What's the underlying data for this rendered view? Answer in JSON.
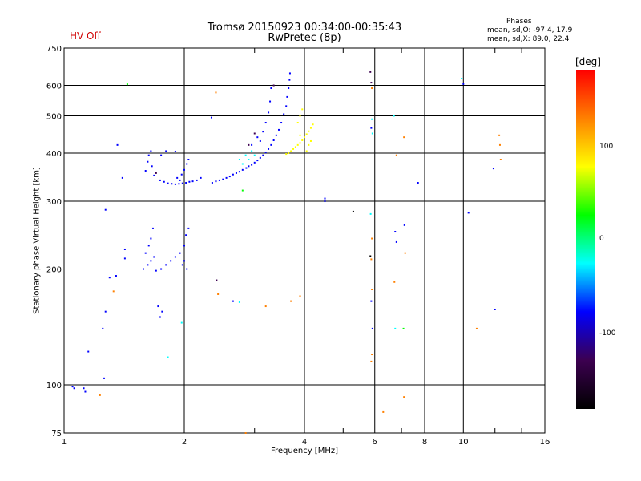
{
  "header": {
    "title_line1": "Tromsø 20150923 00:34:00-00:35:43",
    "title_line2": "RwPretec (8p)",
    "hv_status": "HV Off",
    "phases_label": "Phases",
    "phase_o": "mean, sd,O: -97.4, 17.9",
    "phase_x": "mean, sd,X:  89.0, 22.4"
  },
  "colorbar": {
    "unit": "[deg]",
    "ticks": [
      "100",
      "0",
      "-100"
    ],
    "range": [
      -180,
      180
    ],
    "colors": [
      "#000000",
      "#3c0050",
      "#0000ff",
      "#00ffff",
      "#00ff00",
      "#ffff00",
      "#ff8000",
      "#ff0000"
    ]
  },
  "chart_data": {
    "type": "scatter",
    "title": "Tromsø 20150923 00:34:00-00:35:43",
    "subtitle": "RwPretec (8p)",
    "xlabel": "Frequency [MHz]",
    "ylabel": "Stationary phase Virtual Height [km]",
    "xscale": "log",
    "yscale": "log",
    "xlim": [
      1,
      16
    ],
    "ylim": [
      75,
      750
    ],
    "xticks": [
      1,
      2,
      4,
      6,
      8,
      10,
      16
    ],
    "xtick_labels": [
      "1",
      "2",
      "4",
      "6",
      "8",
      "10",
      "16"
    ],
    "yticks": [
      75,
      100,
      200,
      300,
      400,
      500,
      600,
      750
    ],
    "ytick_labels": [
      "75",
      "100",
      "200",
      "300",
      "400",
      "500",
      "600",
      "750"
    ],
    "grid": true,
    "colorbar_label": "[deg]",
    "points": [
      {
        "x": 1.74,
        "y": 340,
        "c": -100
      },
      {
        "x": 1.78,
        "y": 337,
        "c": -100
      },
      {
        "x": 1.82,
        "y": 334,
        "c": -100
      },
      {
        "x": 1.86,
        "y": 333,
        "c": -100
      },
      {
        "x": 1.9,
        "y": 332,
        "c": -100
      },
      {
        "x": 1.94,
        "y": 333,
        "c": -100
      },
      {
        "x": 1.98,
        "y": 334,
        "c": -100
      },
      {
        "x": 2.02,
        "y": 335,
        "c": -100
      },
      {
        "x": 2.06,
        "y": 337,
        "c": -100
      },
      {
        "x": 2.1,
        "y": 338,
        "c": -100
      },
      {
        "x": 1.92,
        "y": 345,
        "c": -100
      },
      {
        "x": 1.97,
        "y": 352,
        "c": -100
      },
      {
        "x": 2.0,
        "y": 362,
        "c": -100
      },
      {
        "x": 2.03,
        "y": 375,
        "c": -100
      },
      {
        "x": 2.05,
        "y": 385,
        "c": -100
      },
      {
        "x": 1.95,
        "y": 340,
        "c": -100
      },
      {
        "x": 2.15,
        "y": 340,
        "c": -100
      },
      {
        "x": 2.2,
        "y": 345,
        "c": -100
      },
      {
        "x": 2.35,
        "y": 335,
        "c": -100
      },
      {
        "x": 2.4,
        "y": 338,
        "c": -100
      },
      {
        "x": 2.45,
        "y": 340,
        "c": -100
      },
      {
        "x": 2.5,
        "y": 342,
        "c": -100
      },
      {
        "x": 2.55,
        "y": 345,
        "c": -100
      },
      {
        "x": 2.6,
        "y": 348,
        "c": -100
      },
      {
        "x": 2.65,
        "y": 352,
        "c": -100
      },
      {
        "x": 2.7,
        "y": 355,
        "c": -100
      },
      {
        "x": 2.75,
        "y": 358,
        "c": -100
      },
      {
        "x": 2.8,
        "y": 362,
        "c": -100
      },
      {
        "x": 2.86,
        "y": 366,
        "c": -100
      },
      {
        "x": 2.9,
        "y": 370,
        "c": -100
      },
      {
        "x": 2.95,
        "y": 373,
        "c": -100
      },
      {
        "x": 3.0,
        "y": 378,
        "c": -100
      },
      {
        "x": 3.05,
        "y": 383,
        "c": -100
      },
      {
        "x": 3.1,
        "y": 389,
        "c": -100
      },
      {
        "x": 3.15,
        "y": 395,
        "c": -100
      },
      {
        "x": 3.2,
        "y": 402,
        "c": -100
      },
      {
        "x": 3.25,
        "y": 410,
        "c": -100
      },
      {
        "x": 3.3,
        "y": 420,
        "c": -100
      },
      {
        "x": 3.35,
        "y": 432,
        "c": -100
      },
      {
        "x": 3.4,
        "y": 445,
        "c": -100
      },
      {
        "x": 3.45,
        "y": 460,
        "c": -100
      },
      {
        "x": 3.5,
        "y": 480,
        "c": -100
      },
      {
        "x": 3.55,
        "y": 505,
        "c": -100
      },
      {
        "x": 3.6,
        "y": 530,
        "c": -100
      },
      {
        "x": 3.62,
        "y": 560,
        "c": -100
      },
      {
        "x": 3.65,
        "y": 590,
        "c": -100
      },
      {
        "x": 3.67,
        "y": 620,
        "c": -100
      },
      {
        "x": 3.68,
        "y": 645,
        "c": -100
      },
      {
        "x": 3.1,
        "y": 430,
        "c": -100
      },
      {
        "x": 3.15,
        "y": 455,
        "c": -100
      },
      {
        "x": 3.2,
        "y": 480,
        "c": -100
      },
      {
        "x": 3.25,
        "y": 510,
        "c": -100
      },
      {
        "x": 3.28,
        "y": 545,
        "c": -100
      },
      {
        "x": 3.3,
        "y": 590,
        "c": -100
      },
      {
        "x": 3.35,
        "y": 600,
        "c": -110
      },
      {
        "x": 2.9,
        "y": 420,
        "c": -110
      },
      {
        "x": 3.0,
        "y": 450,
        "c": -110
      },
      {
        "x": 2.75,
        "y": 385,
        "c": -5
      },
      {
        "x": 2.85,
        "y": 395,
        "c": -5
      },
      {
        "x": 2.95,
        "y": 405,
        "c": -5
      },
      {
        "x": 2.8,
        "y": 375,
        "c": -5
      },
      {
        "x": 2.9,
        "y": 385,
        "c": -5
      },
      {
        "x": 3.0,
        "y": 395,
        "c": -5
      },
      {
        "x": 2.95,
        "y": 420,
        "c": -100
      },
      {
        "x": 3.05,
        "y": 440,
        "c": -100
      },
      {
        "x": 3.65,
        "y": 400,
        "c": 80
      },
      {
        "x": 3.7,
        "y": 405,
        "c": 80
      },
      {
        "x": 3.75,
        "y": 410,
        "c": 80
      },
      {
        "x": 3.8,
        "y": 415,
        "c": 80
      },
      {
        "x": 3.85,
        "y": 420,
        "c": 80
      },
      {
        "x": 3.9,
        "y": 425,
        "c": 80
      },
      {
        "x": 3.95,
        "y": 432,
        "c": 80
      },
      {
        "x": 4.0,
        "y": 440,
        "c": 80
      },
      {
        "x": 4.05,
        "y": 448,
        "c": 80
      },
      {
        "x": 4.1,
        "y": 456,
        "c": 80
      },
      {
        "x": 4.15,
        "y": 465,
        "c": 80
      },
      {
        "x": 4.2,
        "y": 475,
        "c": 80
      },
      {
        "x": 4.1,
        "y": 420,
        "c": 80
      },
      {
        "x": 4.15,
        "y": 430,
        "c": 80
      },
      {
        "x": 3.85,
        "y": 480,
        "c": 80
      },
      {
        "x": 3.9,
        "y": 500,
        "c": 80
      },
      {
        "x": 3.95,
        "y": 520,
        "c": 80
      },
      {
        "x": 3.9,
        "y": 445,
        "c": 80
      },
      {
        "x": 4.05,
        "y": 405,
        "c": 80
      },
      {
        "x": 3.6,
        "y": 398,
        "c": 80
      },
      {
        "x": 1.6,
        "y": 360,
        "c": -100
      },
      {
        "x": 1.62,
        "y": 380,
        "c": -100
      },
      {
        "x": 1.63,
        "y": 395,
        "c": -100
      },
      {
        "x": 1.65,
        "y": 405,
        "c": -100
      },
      {
        "x": 1.66,
        "y": 370,
        "c": -100
      },
      {
        "x": 1.68,
        "y": 350,
        "c": -100
      },
      {
        "x": 1.7,
        "y": 355,
        "c": -110
      },
      {
        "x": 1.75,
        "y": 395,
        "c": -100
      },
      {
        "x": 1.8,
        "y": 405,
        "c": -100
      },
      {
        "x": 1.58,
        "y": 200,
        "c": -100
      },
      {
        "x": 1.62,
        "y": 205,
        "c": -100
      },
      {
        "x": 1.65,
        "y": 210,
        "c": -100
      },
      {
        "x": 1.68,
        "y": 215,
        "c": -100
      },
      {
        "x": 1.6,
        "y": 220,
        "c": -100
      },
      {
        "x": 1.63,
        "y": 230,
        "c": -100
      },
      {
        "x": 1.65,
        "y": 240,
        "c": -100
      },
      {
        "x": 1.67,
        "y": 255,
        "c": -100
      },
      {
        "x": 1.7,
        "y": 198,
        "c": -100
      },
      {
        "x": 1.75,
        "y": 200,
        "c": -100
      },
      {
        "x": 1.8,
        "y": 205,
        "c": -100
      },
      {
        "x": 1.85,
        "y": 210,
        "c": -100
      },
      {
        "x": 1.9,
        "y": 215,
        "c": -100
      },
      {
        "x": 1.95,
        "y": 220,
        "c": -100
      },
      {
        "x": 2.0,
        "y": 230,
        "c": -100
      },
      {
        "x": 2.02,
        "y": 245,
        "c": -100
      },
      {
        "x": 2.05,
        "y": 255,
        "c": -100
      },
      {
        "x": 1.98,
        "y": 205,
        "c": -100
      },
      {
        "x": 2.0,
        "y": 210,
        "c": -100
      },
      {
        "x": 2.03,
        "y": 200,
        "c": -100
      },
      {
        "x": 1.72,
        "y": 160,
        "c": -100
      },
      {
        "x": 1.74,
        "y": 150,
        "c": -100
      },
      {
        "x": 1.76,
        "y": 155,
        "c": -100
      },
      {
        "x": 1.82,
        "y": 118,
        "c": -20
      },
      {
        "x": 1.97,
        "y": 145,
        "c": -10
      },
      {
        "x": 1.05,
        "y": 99,
        "c": -100
      },
      {
        "x": 1.06,
        "y": 98,
        "c": -100
      },
      {
        "x": 1.12,
        "y": 98,
        "c": -100
      },
      {
        "x": 1.13,
        "y": 96,
        "c": -100
      },
      {
        "x": 1.15,
        "y": 122,
        "c": -100
      },
      {
        "x": 1.23,
        "y": 94,
        "c": 110
      },
      {
        "x": 1.26,
        "y": 104,
        "c": -100
      },
      {
        "x": 1.25,
        "y": 140,
        "c": -100
      },
      {
        "x": 1.27,
        "y": 155,
        "c": -100
      },
      {
        "x": 1.3,
        "y": 190,
        "c": -100
      },
      {
        "x": 1.33,
        "y": 175,
        "c": 150
      },
      {
        "x": 1.35,
        "y": 192,
        "c": -100
      },
      {
        "x": 1.27,
        "y": 285,
        "c": -100
      },
      {
        "x": 1.42,
        "y": 225,
        "c": -100
      },
      {
        "x": 1.42,
        "y": 213,
        "c": -100
      },
      {
        "x": 1.44,
        "y": 604,
        "c": 20
      },
      {
        "x": 1.36,
        "y": 420,
        "c": -100
      },
      {
        "x": 1.4,
        "y": 345,
        "c": -100
      },
      {
        "x": 1.9,
        "y": 404,
        "c": -100
      },
      {
        "x": 2.34,
        "y": 495,
        "c": -100
      },
      {
        "x": 2.4,
        "y": 575,
        "c": 110
      },
      {
        "x": 2.41,
        "y": 187,
        "c": -130
      },
      {
        "x": 2.43,
        "y": 172,
        "c": 110
      },
      {
        "x": 2.65,
        "y": 165,
        "c": -100
      },
      {
        "x": 2.75,
        "y": 164,
        "c": -20
      },
      {
        "x": 2.85,
        "y": 75,
        "c": 110
      },
      {
        "x": 2.8,
        "y": 320,
        "c": 20
      },
      {
        "x": 3.2,
        "y": 160,
        "c": 110
      },
      {
        "x": 3.7,
        "y": 165,
        "c": 110
      },
      {
        "x": 3.9,
        "y": 170,
        "c": 110
      },
      {
        "x": 4.5,
        "y": 305,
        "c": -100
      },
      {
        "x": 4.5,
        "y": 300,
        "c": -100
      },
      {
        "x": 5.3,
        "y": 282,
        "c": -170
      },
      {
        "x": 5.85,
        "y": 650,
        "c": -130
      },
      {
        "x": 5.88,
        "y": 610,
        "c": -150
      },
      {
        "x": 5.9,
        "y": 590,
        "c": 110
      },
      {
        "x": 5.9,
        "y": 490,
        "c": -10
      },
      {
        "x": 5.88,
        "y": 465,
        "c": -100
      },
      {
        "x": 5.92,
        "y": 450,
        "c": -20
      },
      {
        "x": 5.86,
        "y": 278,
        "c": -10
      },
      {
        "x": 5.9,
        "y": 240,
        "c": 110
      },
      {
        "x": 5.85,
        "y": 216,
        "c": -170
      },
      {
        "x": 5.88,
        "y": 212,
        "c": 110
      },
      {
        "x": 5.9,
        "y": 177,
        "c": 110
      },
      {
        "x": 5.88,
        "y": 165,
        "c": -100
      },
      {
        "x": 5.92,
        "y": 140,
        "c": -100
      },
      {
        "x": 5.9,
        "y": 120,
        "c": 110
      },
      {
        "x": 5.88,
        "y": 115,
        "c": 110
      },
      {
        "x": 6.3,
        "y": 85,
        "c": 150
      },
      {
        "x": 6.7,
        "y": 500,
        "c": -20
      },
      {
        "x": 6.8,
        "y": 395,
        "c": 110
      },
      {
        "x": 6.75,
        "y": 250,
        "c": -100
      },
      {
        "x": 6.8,
        "y": 235,
        "c": -100
      },
      {
        "x": 6.72,
        "y": 185,
        "c": 150
      },
      {
        "x": 6.75,
        "y": 140,
        "c": -10
      },
      {
        "x": 7.1,
        "y": 440,
        "c": 110
      },
      {
        "x": 7.12,
        "y": 260,
        "c": -100
      },
      {
        "x": 7.15,
        "y": 220,
        "c": 110
      },
      {
        "x": 7.08,
        "y": 140,
        "c": 20
      },
      {
        "x": 7.1,
        "y": 93,
        "c": 110
      },
      {
        "x": 7.7,
        "y": 335,
        "c": -100
      },
      {
        "x": 9.9,
        "y": 625,
        "c": -20
      },
      {
        "x": 10.0,
        "y": 605,
        "c": -100
      },
      {
        "x": 10.3,
        "y": 280,
        "c": -100
      },
      {
        "x": 10.8,
        "y": 140,
        "c": 110
      },
      {
        "x": 11.9,
        "y": 365,
        "c": -100
      },
      {
        "x": 12.3,
        "y": 445,
        "c": 110
      },
      {
        "x": 12.35,
        "y": 420,
        "c": 110
      },
      {
        "x": 12.4,
        "y": 385,
        "c": 110
      },
      {
        "x": 12.0,
        "y": 157,
        "c": -100
      }
    ]
  }
}
